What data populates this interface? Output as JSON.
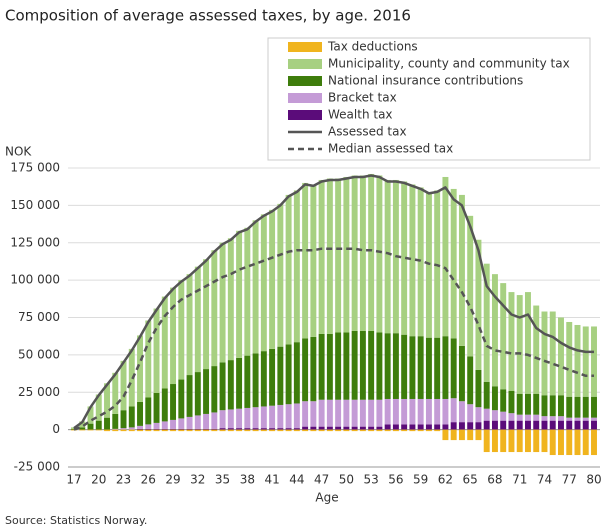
{
  "chart_data": {
    "type": "bar",
    "title": "Composition of average assessed taxes, by age. 2016",
    "y_label": "NOK",
    "x_label": "Age",
    "source": "Source: Statistics Norway.",
    "stacked": true,
    "grid": true,
    "legend": "top-right",
    "categories": [
      "17",
      null,
      null,
      "20",
      null,
      null,
      "23",
      null,
      null,
      "26",
      null,
      null,
      "29",
      null,
      null,
      "32",
      null,
      null,
      "35",
      null,
      null,
      "38",
      null,
      null,
      "41",
      null,
      null,
      "44",
      null,
      null,
      "47",
      null,
      null,
      "50",
      null,
      null,
      "53",
      null,
      null,
      "56",
      null,
      null,
      "59",
      null,
      null,
      "62",
      null,
      null,
      "65",
      null,
      null,
      "68",
      null,
      null,
      "71",
      null,
      null,
      "74",
      null,
      null,
      "77",
      null,
      null,
      "80"
    ],
    "ylim": [
      -25000,
      175000
    ],
    "yticks": [
      {
        "value": -25000,
        "label": "-25 000"
      },
      0,
      {
        "value": 25000,
        "label": "25 000"
      },
      {
        "value": 50000,
        "label": "50 000"
      },
      {
        "value": 75000,
        "label": "75 000"
      },
      {
        "value": 100000,
        "label": "100 000"
      },
      {
        "value": 125000,
        "label": "125 000"
      },
      {
        "value": 150000,
        "label": "150 000"
      },
      {
        "value": 175000,
        "label": "175 000"
      }
    ],
    "series": [
      {
        "name": "Tax deductions",
        "color": "#f0b41e",
        "type": "bar",
        "values": [
          -500,
          -500,
          -500,
          -500,
          -1000,
          -1000,
          -1000,
          -1000,
          -1000,
          -1000,
          -1000,
          -1000,
          -1000,
          -1000,
          -1000,
          -1000,
          -1000,
          -1000,
          -1000,
          -1000,
          -1000,
          -1000,
          -1000,
          -1000,
          -1000,
          -1000,
          -1000,
          -1000,
          -1000,
          -1000,
          -1000,
          -1000,
          -1000,
          -1000,
          -1000,
          -1000,
          -1000,
          -1000,
          -1000,
          -1000,
          -1000,
          -1000,
          -1000,
          -1000,
          -1000,
          -7000,
          -7000,
          -7000,
          -7000,
          -7000,
          -15000,
          -15000,
          -15000,
          -15000,
          -15000,
          -15000,
          -15000,
          -15000,
          -17000,
          -17000,
          -17000,
          -17000,
          -17000,
          -17000
        ]
      },
      {
        "name": "Municipality, county and community tax",
        "color": "#a7d081",
        "type": "bar",
        "values": [
          1000,
          4000,
          11500,
          17500,
          23000,
          27500,
          33000,
          38500,
          44500,
          51500,
          56500,
          61500,
          64500,
          66500,
          67500,
          70500,
          73500,
          77500,
          80000,
          81500,
          85000,
          85500,
          89000,
          91500,
          93000,
          95500,
          100000,
          101500,
          104000,
          102000,
          103000,
          104000,
          103000,
          104000,
          104000,
          104000,
          105000,
          105000,
          102500,
          102500,
          102500,
          101500,
          99500,
          97500,
          98500,
          106500,
          100000,
          101000,
          94000,
          87000,
          79000,
          75000,
          71000,
          66000,
          66000,
          68000,
          59000,
          56000,
          56000,
          52000,
          50000,
          48000,
          47000,
          47000
        ]
      },
      {
        "name": "National insurance contributions",
        "color": "#3e7d0c",
        "type": "bar",
        "values": [
          500,
          1500,
          4000,
          6000,
          8000,
          10000,
          12000,
          14000,
          16000,
          18000,
          20000,
          22000,
          24000,
          26000,
          28000,
          29000,
          30000,
          31000,
          32000,
          33000,
          34000,
          35000,
          36000,
          37000,
          38000,
          39000,
          40000,
          41000,
          42000,
          43000,
          44000,
          44000,
          45000,
          45000,
          46000,
          46000,
          46000,
          45000,
          44000,
          44000,
          43000,
          42000,
          42000,
          41000,
          41000,
          42000,
          40000,
          37000,
          32000,
          25000,
          18000,
          16000,
          15000,
          15000,
          14000,
          14000,
          14000,
          14000,
          14000,
          14000,
          14000,
          14000,
          14000,
          14000
        ]
      },
      {
        "name": "Bracket tax",
        "color": "#c49bd6",
        "type": "bar",
        "values": [
          0,
          0,
          0,
          0,
          0,
          500,
          1000,
          1500,
          2000,
          3000,
          4000,
          5000,
          6000,
          7000,
          8000,
          9000,
          10000,
          11000,
          12000,
          12500,
          13000,
          13500,
          14000,
          14500,
          15000,
          15500,
          16000,
          16500,
          17000,
          17000,
          18000,
          18000,
          18000,
          18000,
          18000,
          18000,
          18000,
          18000,
          17000,
          17000,
          17000,
          17000,
          17000,
          17000,
          17000,
          17000,
          16000,
          14000,
          12000,
          10000,
          8000,
          7000,
          6000,
          5000,
          4000,
          4000,
          4000,
          3000,
          3000,
          3000,
          2000,
          2000,
          2000,
          2000
        ]
      },
      {
        "name": "Wealth tax",
        "color": "#5b0c7a",
        "type": "bar",
        "values": [
          0,
          0,
          0,
          0,
          0,
          0,
          0,
          0,
          500,
          500,
          500,
          500,
          500,
          500,
          500,
          500,
          500,
          500,
          1000,
          1000,
          1000,
          1000,
          1000,
          1000,
          1000,
          1000,
          1000,
          1000,
          2000,
          2000,
          2000,
          2000,
          2000,
          2000,
          2000,
          2000,
          2000,
          2000,
          3500,
          3500,
          3500,
          3500,
          3500,
          3500,
          3500,
          3500,
          5000,
          5000,
          5000,
          5000,
          6000,
          6000,
          6000,
          6000,
          6000,
          6000,
          6000,
          6000,
          6000,
          6000,
          6000,
          6000,
          6000,
          6000
        ]
      },
      {
        "name": "Assessed tax",
        "color": "#555555",
        "type": "line",
        "values": [
          1000,
          5000,
          15000,
          23000,
          30000,
          37000,
          45000,
          53000,
          62000,
          72000,
          80000,
          88000,
          94000,
          99000,
          103000,
          108000,
          113000,
          119000,
          124000,
          127000,
          132000,
          134000,
          139000,
          143000,
          146000,
          150000,
          156000,
          159000,
          164000,
          163000,
          166000,
          167000,
          167000,
          168000,
          169000,
          169000,
          170000,
          169000,
          166000,
          166000,
          165000,
          163000,
          161000,
          158000,
          159000,
          162000,
          154000,
          150000,
          136000,
          120000,
          96000,
          89000,
          83000,
          77000,
          75000,
          77000,
          68000,
          64000,
          62000,
          58000,
          55000,
          53000,
          52000,
          52000
        ]
      },
      {
        "name": "Median assessed tax",
        "color": "#555555",
        "type": "line",
        "dashed": true,
        "values": [
          0,
          2000,
          6000,
          9000,
          12000,
          16000,
          22000,
          33000,
          45000,
          58000,
          68000,
          76000,
          82000,
          87000,
          90000,
          93000,
          96000,
          99000,
          102000,
          104000,
          107000,
          109000,
          111000,
          113000,
          115000,
          117000,
          119000,
          120000,
          120000,
          120000,
          121000,
          121000,
          121000,
          121000,
          121000,
          120000,
          120000,
          119000,
          118000,
          116000,
          115000,
          114000,
          113000,
          111000,
          110000,
          108000,
          100000,
          92000,
          82000,
          70000,
          56000,
          53000,
          52000,
          51000,
          51000,
          50000,
          48000,
          46000,
          44000,
          42000,
          40000,
          38000,
          36000,
          36000
        ]
      }
    ]
  }
}
